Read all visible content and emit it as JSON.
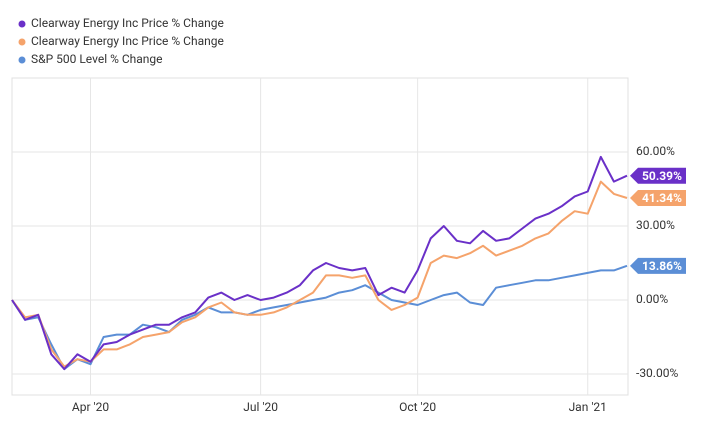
{
  "chart_data": {
    "type": "line",
    "categories": [
      null,
      null,
      null,
      null,
      null,
      null,
      "Apr '20",
      null,
      null,
      null,
      null,
      null,
      null,
      null,
      null,
      null,
      null,
      null,
      null,
      "Jul '20",
      null,
      null,
      null,
      null,
      null,
      null,
      null,
      null,
      null,
      null,
      null,
      "Oct '20",
      null,
      null,
      null,
      null,
      null,
      null,
      null,
      null,
      null,
      null,
      null,
      null,
      "Jan '21",
      null,
      null,
      null
    ],
    "series": [
      {
        "name": "Clearway Energy Inc Price % Change",
        "color": "#6a30c8",
        "values": [
          0,
          -8,
          -6,
          -22,
          -28,
          -22,
          -25,
          -18,
          -17,
          -14,
          -12,
          -10,
          -10,
          -7,
          -5,
          1,
          3,
          0,
          2,
          0,
          1,
          3,
          6,
          12,
          15,
          13,
          12,
          13,
          2,
          5,
          3,
          12,
          25,
          30,
          24,
          23,
          28,
          24,
          25,
          29,
          33,
          35,
          38,
          42,
          44,
          58,
          48,
          50.39
        ],
        "value_labels": [
          null,
          null,
          null,
          null,
          null,
          null,
          null,
          null,
          null,
          null,
          null,
          null,
          null,
          null,
          null,
          null,
          null,
          null,
          null,
          null,
          null,
          null,
          null,
          null,
          null,
          null,
          null,
          null,
          null,
          null,
          null,
          null,
          null,
          null,
          null,
          null,
          null,
          null,
          null,
          null,
          null,
          null,
          null,
          null,
          null,
          null,
          null,
          "50.39%"
        ]
      },
      {
        "name": "Clearway Energy Inc Price % Change",
        "color": "#f5a36b",
        "values": [
          0,
          -7,
          -6,
          -20,
          -27,
          -24,
          -25,
          -20,
          -20,
          -18,
          -15,
          -14,
          -13,
          -9,
          -7,
          -3,
          -1,
          -5,
          -6,
          -6,
          -5,
          -3,
          0,
          3,
          10,
          10,
          9,
          10,
          0,
          -4,
          -2,
          1,
          15,
          18,
          17,
          19,
          22,
          18,
          20,
          22,
          25,
          27,
          32,
          36,
          35,
          48,
          43,
          41.34
        ],
        "value_labels": [
          null,
          null,
          null,
          null,
          null,
          null,
          null,
          null,
          null,
          null,
          null,
          null,
          null,
          null,
          null,
          null,
          null,
          null,
          null,
          null,
          null,
          null,
          null,
          null,
          null,
          null,
          null,
          null,
          null,
          null,
          null,
          null,
          null,
          null,
          null,
          null,
          null,
          null,
          null,
          null,
          null,
          null,
          null,
          null,
          null,
          null,
          null,
          "41.34%"
        ]
      },
      {
        "name": "S&P 500 Level % Change",
        "color": "#5b8ed6",
        "values": [
          0,
          -8,
          -7,
          -18,
          -28,
          -24,
          -26,
          -15,
          -14,
          -14,
          -10,
          -11,
          -13,
          -8,
          -6,
          -3,
          -5,
          -5,
          -6,
          -4,
          -3,
          -2,
          -1,
          0,
          1,
          3,
          4,
          6,
          3,
          0,
          -1,
          -2,
          0,
          2,
          3,
          -1,
          -2,
          5,
          6,
          7,
          8,
          8,
          9,
          10,
          11,
          12,
          12,
          13.86
        ],
        "value_labels": [
          null,
          null,
          null,
          null,
          null,
          null,
          null,
          null,
          null,
          null,
          null,
          null,
          null,
          null,
          null,
          null,
          null,
          null,
          null,
          null,
          null,
          null,
          null,
          null,
          null,
          null,
          null,
          null,
          null,
          null,
          null,
          null,
          null,
          null,
          null,
          null,
          null,
          null,
          null,
          null,
          null,
          null,
          null,
          null,
          null,
          null,
          null,
          "13.86%"
        ]
      }
    ],
    "ylim": [
      -38.5,
      90
    ],
    "yticks": [
      {
        "value": -30,
        "label": "-30.00%"
      },
      {
        "value": 0,
        "label": "0.00%"
      },
      {
        "value": 30,
        "label": "30.00%"
      },
      {
        "value": 60,
        "label": "60.00%"
      }
    ],
    "grid": true
  }
}
